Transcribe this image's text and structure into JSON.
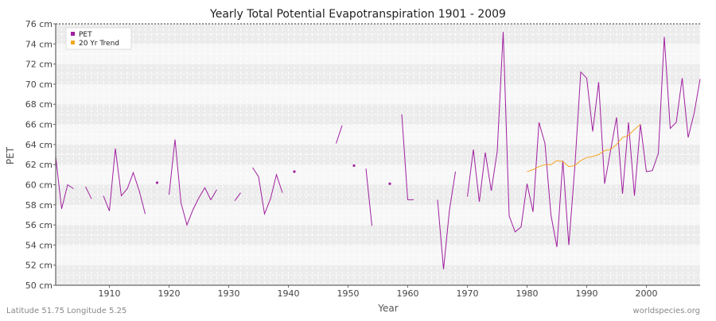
{
  "chart_data": {
    "type": "line",
    "title": "Yearly Total Potential Evapotranspiration 1901 - 2009",
    "xlabel": "Year",
    "ylabel": "PET",
    "xlim": [
      1901,
      2009
    ],
    "ylim": [
      50,
      76
    ],
    "y_unit": "cm",
    "x_ticks": [
      1910,
      1920,
      1930,
      1940,
      1950,
      1960,
      1970,
      1980,
      1990,
      2000
    ],
    "y_ticks": [
      50,
      52,
      54,
      56,
      58,
      60,
      62,
      64,
      66,
      68,
      70,
      72,
      74,
      76
    ],
    "y_tick_labels": [
      "50 cm",
      "52 cm",
      "54 cm",
      "56 cm",
      "58 cm",
      "60 cm",
      "62 cm",
      "64 cm",
      "66 cm",
      "68 cm",
      "70 cm",
      "72 cm",
      "74 cm",
      "76 cm"
    ],
    "grid": true,
    "legend_position": "top-left",
    "series": [
      {
        "name": "PET",
        "color": "#a020a0",
        "x": [
          1901,
          1902,
          1903,
          1904,
          1906,
          1907,
          1909,
          1910,
          1911,
          1912,
          1913,
          1914,
          1915,
          1916,
          1918,
          1920,
          1921,
          1922,
          1923,
          1924,
          1925,
          1926,
          1927,
          1928,
          1931,
          1932,
          1934,
          1935,
          1936,
          1937,
          1938,
          1939,
          1941,
          1948,
          1949,
          1951,
          1953,
          1954,
          1957,
          1959,
          1960,
          1961,
          1965,
          1966,
          1967,
          1968,
          1970,
          1971,
          1972,
          1973,
          1974,
          1975,
          1976,
          1977,
          1978,
          1979,
          1980,
          1981,
          1982,
          1983,
          1984,
          1985,
          1986,
          1987,
          1988,
          1989,
          1990,
          1991,
          1992,
          1993,
          1994,
          1995,
          1996,
          1997,
          1998,
          1999,
          2000,
          2001,
          2002,
          2003,
          2004,
          2005,
          2006,
          2007,
          2008,
          2009
        ],
        "y": [
          62.8,
          57.6,
          60.0,
          59.6,
          59.8,
          58.6,
          58.9,
          57.4,
          63.6,
          58.9,
          59.6,
          61.2,
          59.4,
          57.1,
          60.2,
          59.0,
          64.5,
          58.2,
          56.0,
          57.5,
          58.7,
          59.7,
          58.5,
          59.5,
          58.4,
          59.2,
          61.7,
          60.8,
          57.1,
          58.6,
          61.0,
          59.2,
          61.3,
          64.1,
          65.9,
          61.9,
          61.6,
          55.9,
          60.1,
          67.0,
          58.5,
          58.5,
          58.5,
          51.6,
          57.5,
          61.3,
          58.8,
          63.5,
          58.3,
          63.2,
          59.4,
          63.3,
          75.2,
          56.9,
          55.3,
          55.8,
          60.1,
          57.3,
          66.2,
          64.1,
          57.0,
          53.8,
          62.4,
          54.0,
          61.7,
          71.2,
          70.6,
          65.3,
          70.2,
          60.1,
          63.4,
          66.7,
          59.1,
          66.2,
          58.9,
          66.0,
          61.3,
          61.4,
          63.1,
          74.7,
          65.6,
          66.2,
          70.6,
          64.7,
          67.1,
          70.5
        ]
      },
      {
        "name": "20 Yr Trend",
        "color": "#f5a623",
        "x": [
          1980,
          1981,
          1982,
          1983,
          1984,
          1985,
          1986,
          1987,
          1988,
          1989,
          1990,
          1991,
          1992,
          1993,
          1994,
          1995,
          1996,
          1997,
          1998,
          1999
        ],
        "y": [
          61.3,
          61.5,
          61.8,
          62.0,
          62.0,
          62.4,
          62.3,
          61.8,
          61.9,
          62.4,
          62.7,
          62.8,
          63.0,
          63.4,
          63.5,
          64.0,
          64.7,
          64.9,
          65.5,
          66.0
        ]
      }
    ]
  },
  "footer": {
    "left": "Latitude 51.75 Longitude 5.25",
    "right": "worldspecies.org"
  }
}
